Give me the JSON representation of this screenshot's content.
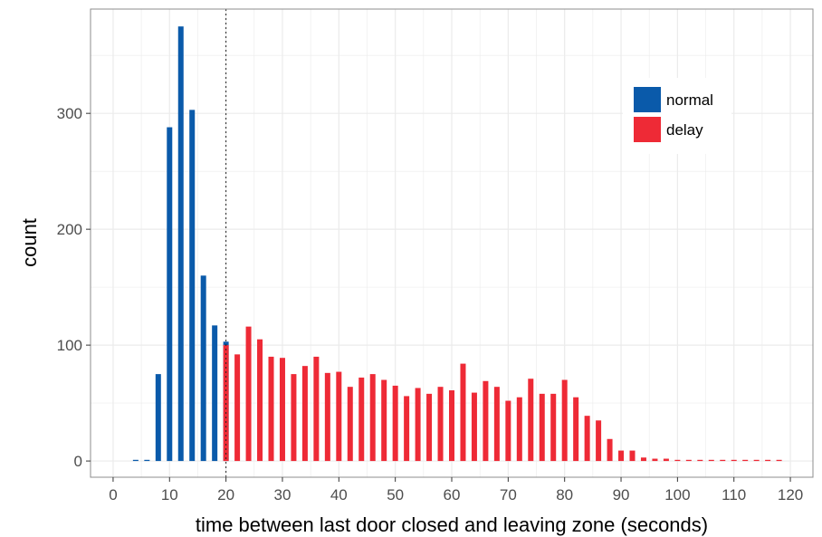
{
  "chart_data": {
    "type": "bar",
    "title": "",
    "xlabel": "time between last door closed and leaving zone (seconds)",
    "ylabel": "count",
    "xlim": [
      -4,
      124
    ],
    "ylim": [
      -14,
      390
    ],
    "x_ticks": [
      0,
      10,
      20,
      30,
      40,
      50,
      60,
      70,
      80,
      90,
      100,
      110,
      120
    ],
    "y_ticks": [
      0,
      100,
      200,
      300
    ],
    "grid": true,
    "legend_position": "top-right",
    "threshold_line": {
      "x": 20,
      "style": "dotted"
    },
    "colors": {
      "normal": "#0a5aaa",
      "delay": "#ee2a36",
      "grid": "#ebebeb",
      "panel_border": "#8c8c8c"
    },
    "series": [
      {
        "name": "normal",
        "x": [
          4,
          6,
          8,
          10,
          12,
          14,
          16,
          18,
          20
        ],
        "values": [
          1,
          1,
          75,
          288,
          375,
          303,
          160,
          117,
          103
        ]
      },
      {
        "name": "delay",
        "x": [
          20,
          22,
          24,
          26,
          28,
          30,
          32,
          34,
          36,
          38,
          40,
          42,
          44,
          46,
          48,
          50,
          52,
          54,
          56,
          58,
          60,
          62,
          64,
          66,
          68,
          70,
          72,
          74,
          76,
          78,
          80,
          82,
          84,
          86,
          88,
          90,
          92,
          94,
          96,
          98,
          100,
          102,
          104,
          106,
          108,
          110,
          112,
          114,
          116,
          118
        ],
        "values": [
          100,
          92,
          116,
          105,
          90,
          89,
          75,
          82,
          90,
          76,
          77,
          64,
          72,
          75,
          70,
          65,
          56,
          63,
          58,
          64,
          61,
          84,
          59,
          69,
          64,
          52,
          55,
          71,
          58,
          58,
          70,
          55,
          39,
          35,
          19,
          9,
          9,
          3,
          2,
          2,
          1,
          1,
          1,
          1,
          1,
          1,
          1,
          1,
          1,
          1
        ]
      }
    ]
  }
}
